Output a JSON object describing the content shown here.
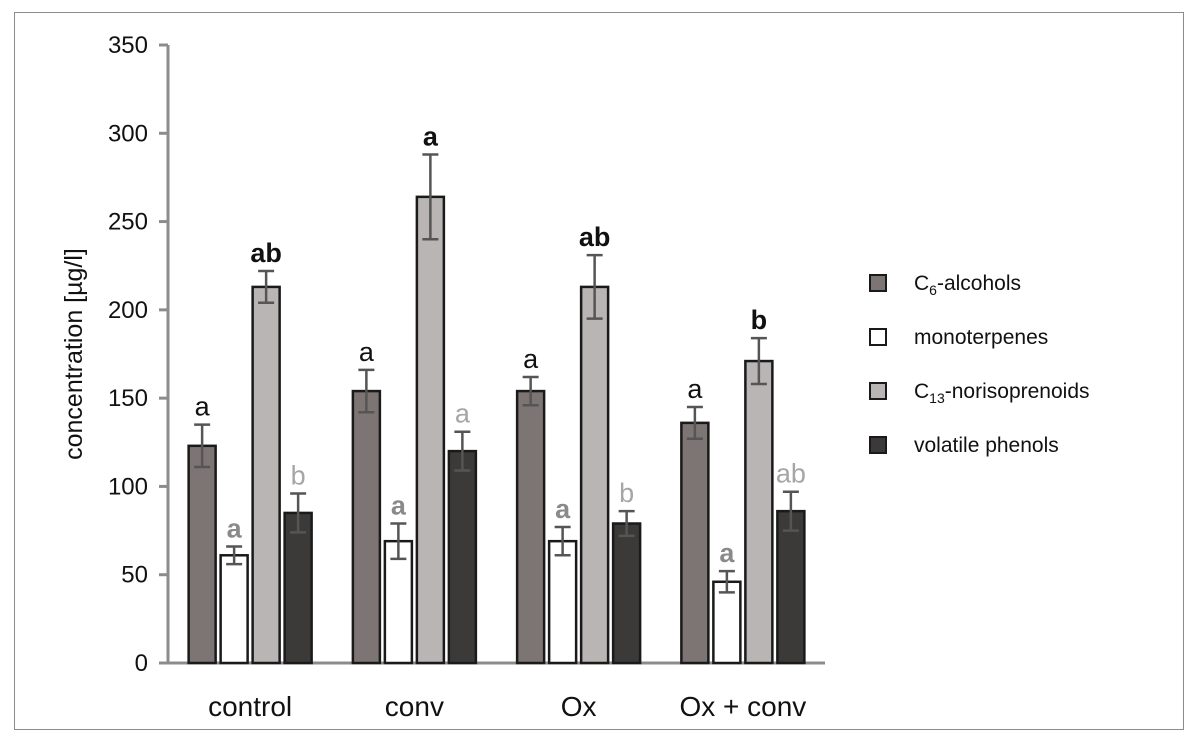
{
  "chart_data": {
    "type": "bar",
    "ylabel": "concentration  [µg/l]",
    "xlabel": "",
    "title": "",
    "ylim": [
      0,
      350
    ],
    "yticks": [
      "0",
      "50",
      "100",
      "150",
      "200",
      "250",
      "300",
      "350"
    ],
    "categories": [
      "control",
      "conv",
      "Ox",
      "Ox + conv"
    ],
    "legend_position": "right",
    "series": [
      {
        "name": "C6-alcohols",
        "name_main": "C",
        "name_sub": "6",
        "name_rest": "-alcohols",
        "color": "#7d7573",
        "values": [
          123,
          154,
          154,
          136
        ],
        "errors": [
          12,
          12,
          8,
          9
        ],
        "letters": [
          "a",
          "a",
          "a",
          "a"
        ],
        "letter_color": "#111111",
        "letter_bold": false
      },
      {
        "name": "monoterpenes",
        "color": "#ffffff",
        "values": [
          61,
          69,
          69,
          46
        ],
        "errors": [
          5,
          10,
          8,
          6
        ],
        "letters": [
          "a",
          "a",
          "a",
          "a"
        ],
        "letter_color": "#8a8a8a",
        "letter_bold": true
      },
      {
        "name": "C13-norisoprenoids",
        "name_main": "C",
        "name_sub": "13",
        "name_rest": "-norisoprenoids",
        "color": "#b9b5b4",
        "values": [
          213,
          264,
          213,
          171
        ],
        "errors": [
          9,
          24,
          18,
          13
        ],
        "letters": [
          "ab",
          "a",
          "ab",
          "b"
        ],
        "letter_color": "#111111",
        "letter_bold": true
      },
      {
        "name": "volatile phenols",
        "color": "#3b3a39",
        "values": [
          85,
          120,
          79,
          86
        ],
        "errors": [
          11,
          11,
          7,
          11
        ],
        "letters": [
          "b",
          "a",
          "b",
          "ab"
        ],
        "letter_color": "#a6a6a6",
        "letter_bold": false
      }
    ]
  }
}
